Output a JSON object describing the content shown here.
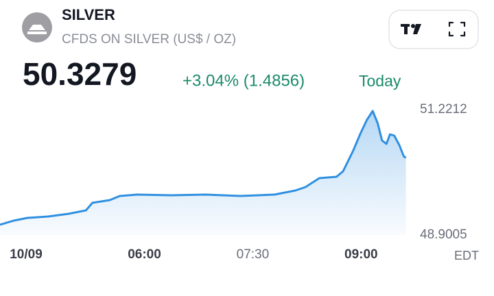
{
  "header": {
    "symbol": "SILVER",
    "description": "CFDS ON SILVER (US$ / OZ)",
    "price": 50.3279,
    "change": "+3.04% (1.4856)",
    "period": "Today"
  },
  "chart_data": {
    "type": "area",
    "x": [
      4,
      4.19,
      4.38,
      4.665,
      4.95,
      5.19,
      5.28,
      5.52,
      5.66,
      5.9,
      6.38,
      6.85,
      7.33,
      7.8,
      8.09,
      8.23,
      8.42,
      8.66,
      8.75,
      8.89,
      8.99,
      9.08,
      9.16,
      9.23,
      9.29,
      9.35,
      9.4,
      9.46,
      9.53,
      9.59,
      9.62
    ],
    "series": [
      {
        "name": "SILVER",
        "color": "#2f8fe0",
        "values": [
          49.091,
          49.167,
          49.218,
          49.243,
          49.294,
          49.357,
          49.497,
          49.547,
          49.623,
          49.649,
          49.636,
          49.649,
          49.623,
          49.649,
          49.725,
          49.788,
          49.953,
          49.978,
          50.08,
          50.46,
          50.777,
          51.031,
          51.196,
          50.968,
          50.65,
          50.587,
          50.765,
          50.739,
          50.562,
          50.359,
          50.328
        ]
      }
    ],
    "xlim": [
      4,
      9.7
    ],
    "xticks": [
      {
        "value": 4,
        "label": "10/09"
      },
      {
        "value": 6,
        "label": "06:00"
      },
      {
        "value": 7.5,
        "label": "07:30"
      },
      {
        "value": 9,
        "label": "09:00"
      }
    ],
    "timezone": "EDT",
    "ylim": [
      48.9005,
      51.2212
    ],
    "yticks": [
      51.2212,
      48.9005
    ]
  }
}
